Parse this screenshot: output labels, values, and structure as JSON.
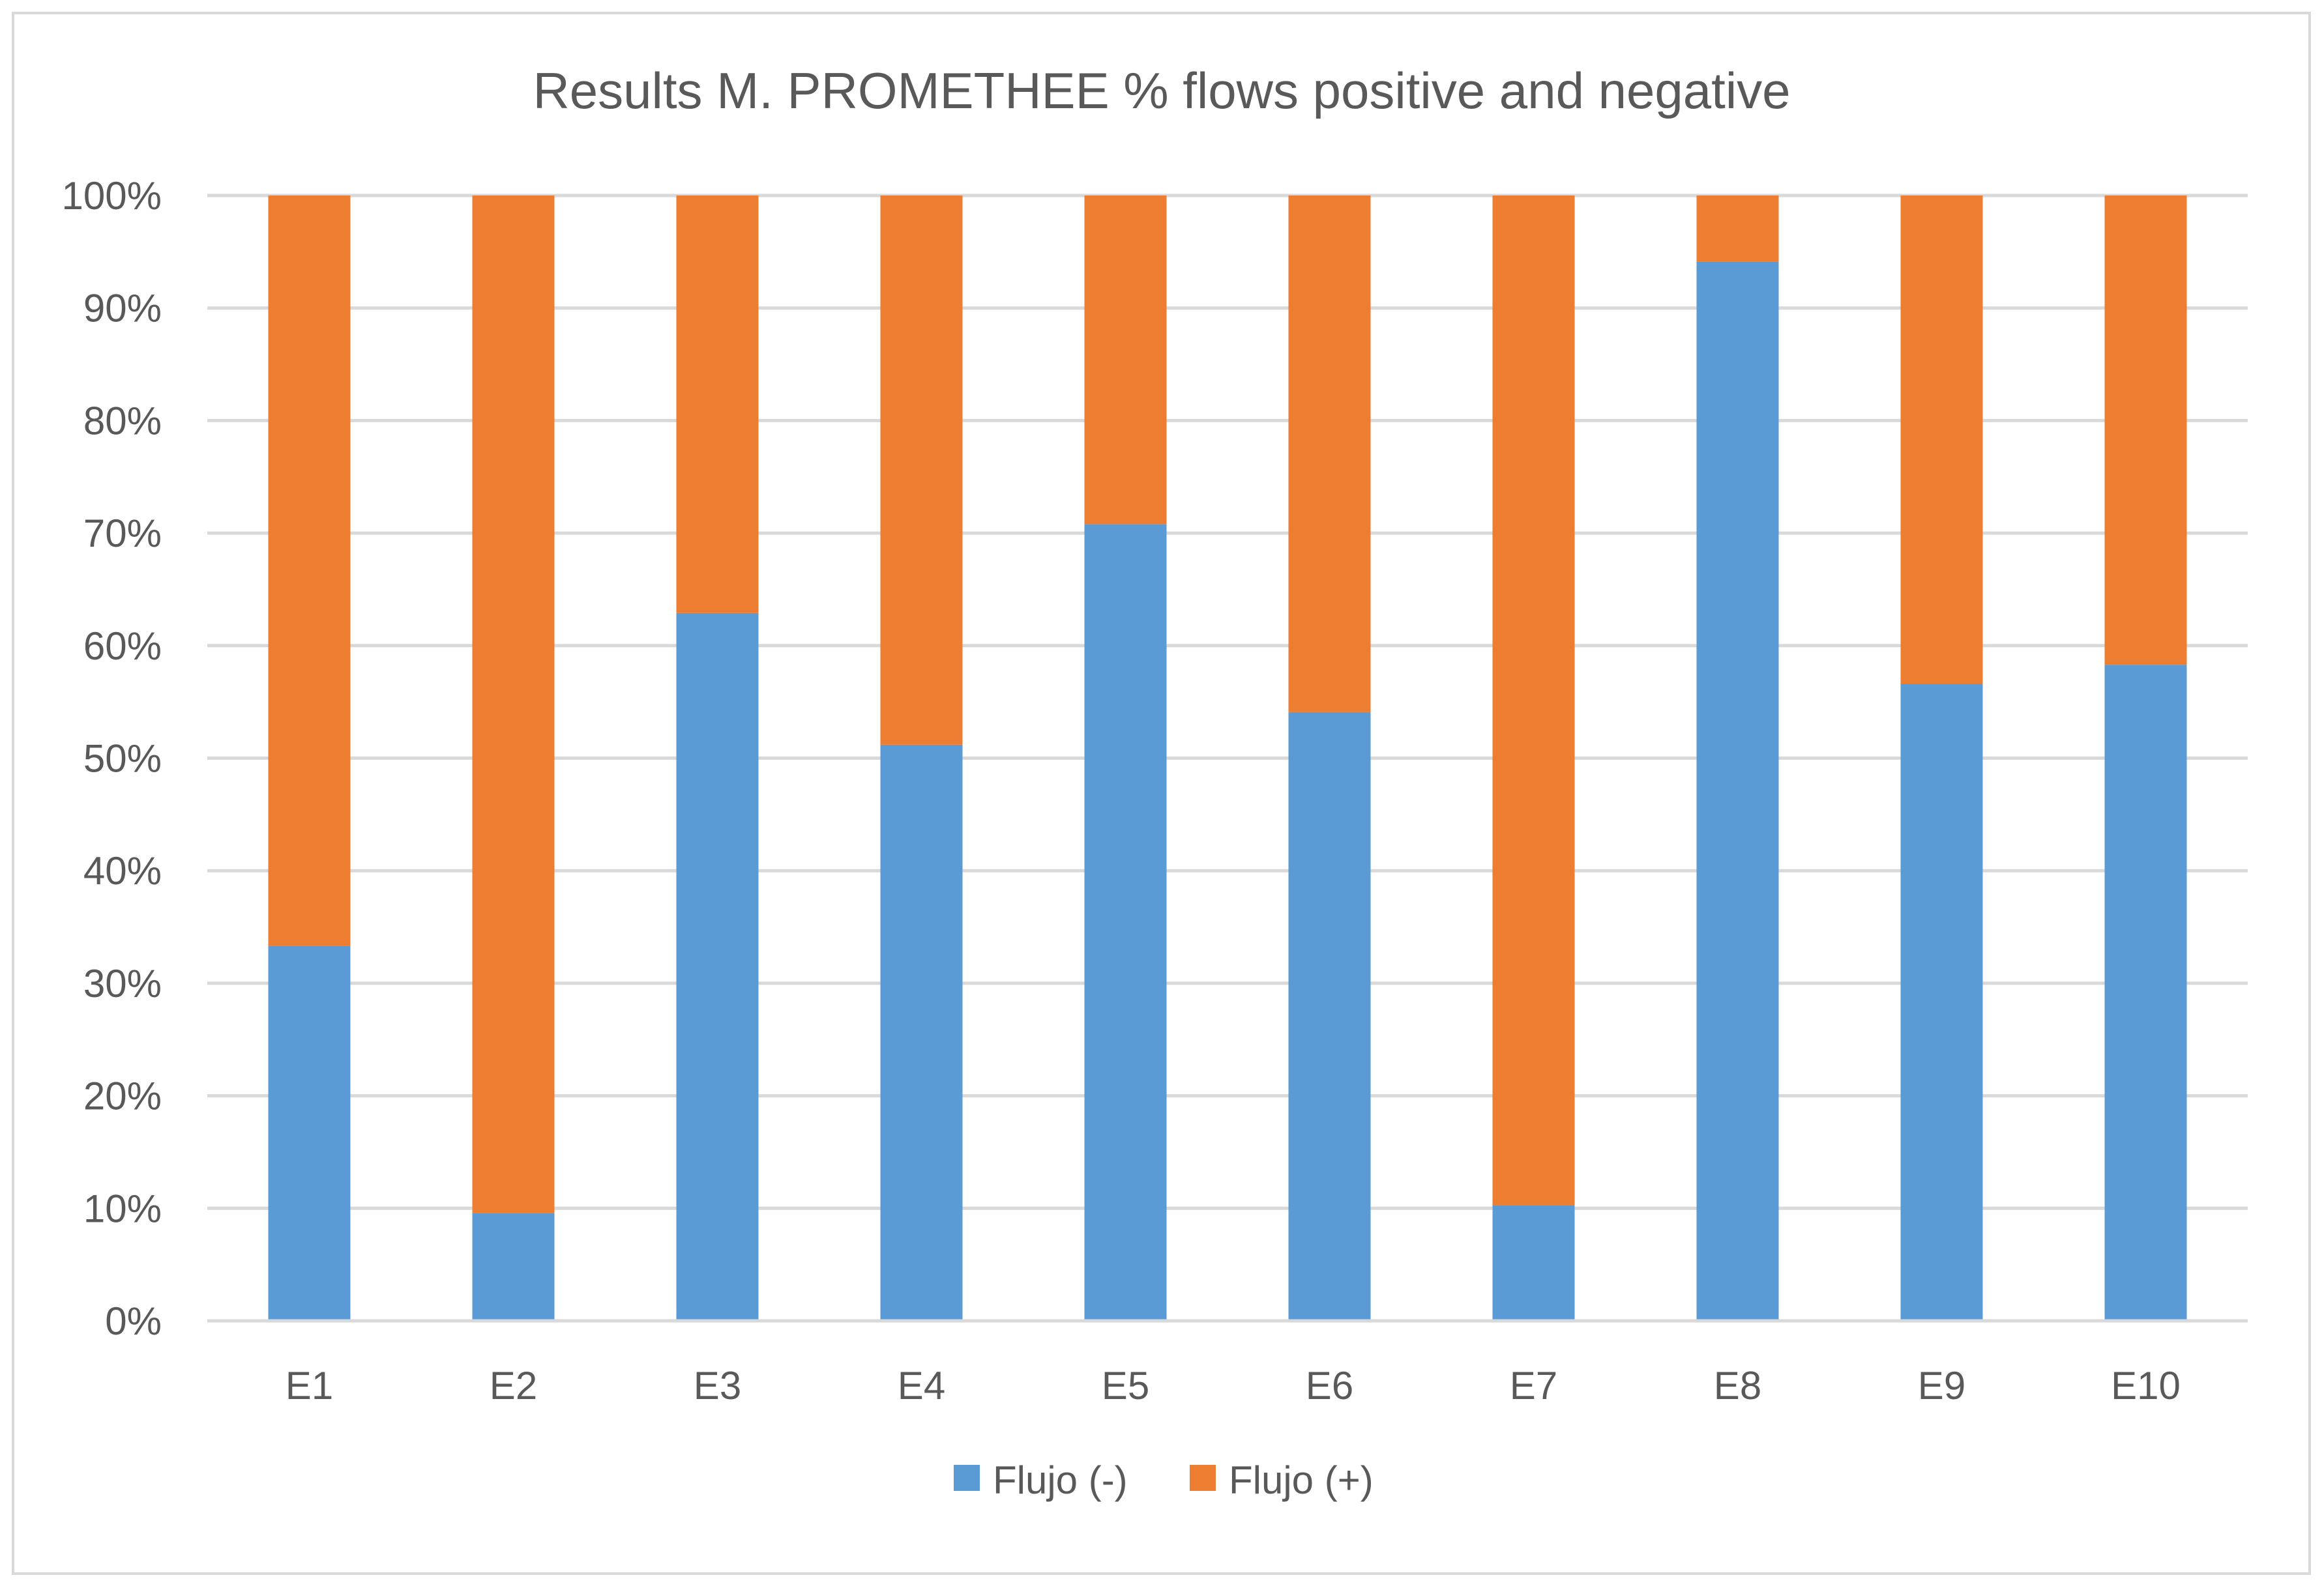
{
  "chart_data": {
    "type": "bar",
    "stacking": "percent",
    "title": "Results M. PROMETHEE % flows positive and negative",
    "xlabel": "",
    "ylabel": "",
    "categories": [
      "E1",
      "E2",
      "E3",
      "E4",
      "E5",
      "E6",
      "E7",
      "E8",
      "E9",
      "E10"
    ],
    "series": [
      {
        "name": "Flujo (-)",
        "color": "#5b9bd5",
        "values": [
          33.3,
          9.6,
          62.9,
          51.2,
          70.8,
          54.1,
          10.3,
          94.1,
          56.6,
          58.3
        ]
      },
      {
        "name": "Flujo (+)",
        "color": "#ed7d31",
        "values": [
          66.7,
          90.4,
          37.1,
          48.8,
          29.2,
          45.9,
          89.7,
          5.9,
          43.4,
          41.7
        ]
      }
    ],
    "ylim": [
      0,
      100
    ],
    "yticks": [
      "0%",
      "10%",
      "20%",
      "30%",
      "40%",
      "50%",
      "60%",
      "70%",
      "80%",
      "90%",
      "100%"
    ],
    "ytick_values": [
      0,
      10,
      20,
      30,
      40,
      50,
      60,
      70,
      80,
      90,
      100
    ],
    "grid": true,
    "legend_position": "bottom",
    "gridline_color": "#d9d9d9",
    "axis_text_color": "#595959"
  }
}
